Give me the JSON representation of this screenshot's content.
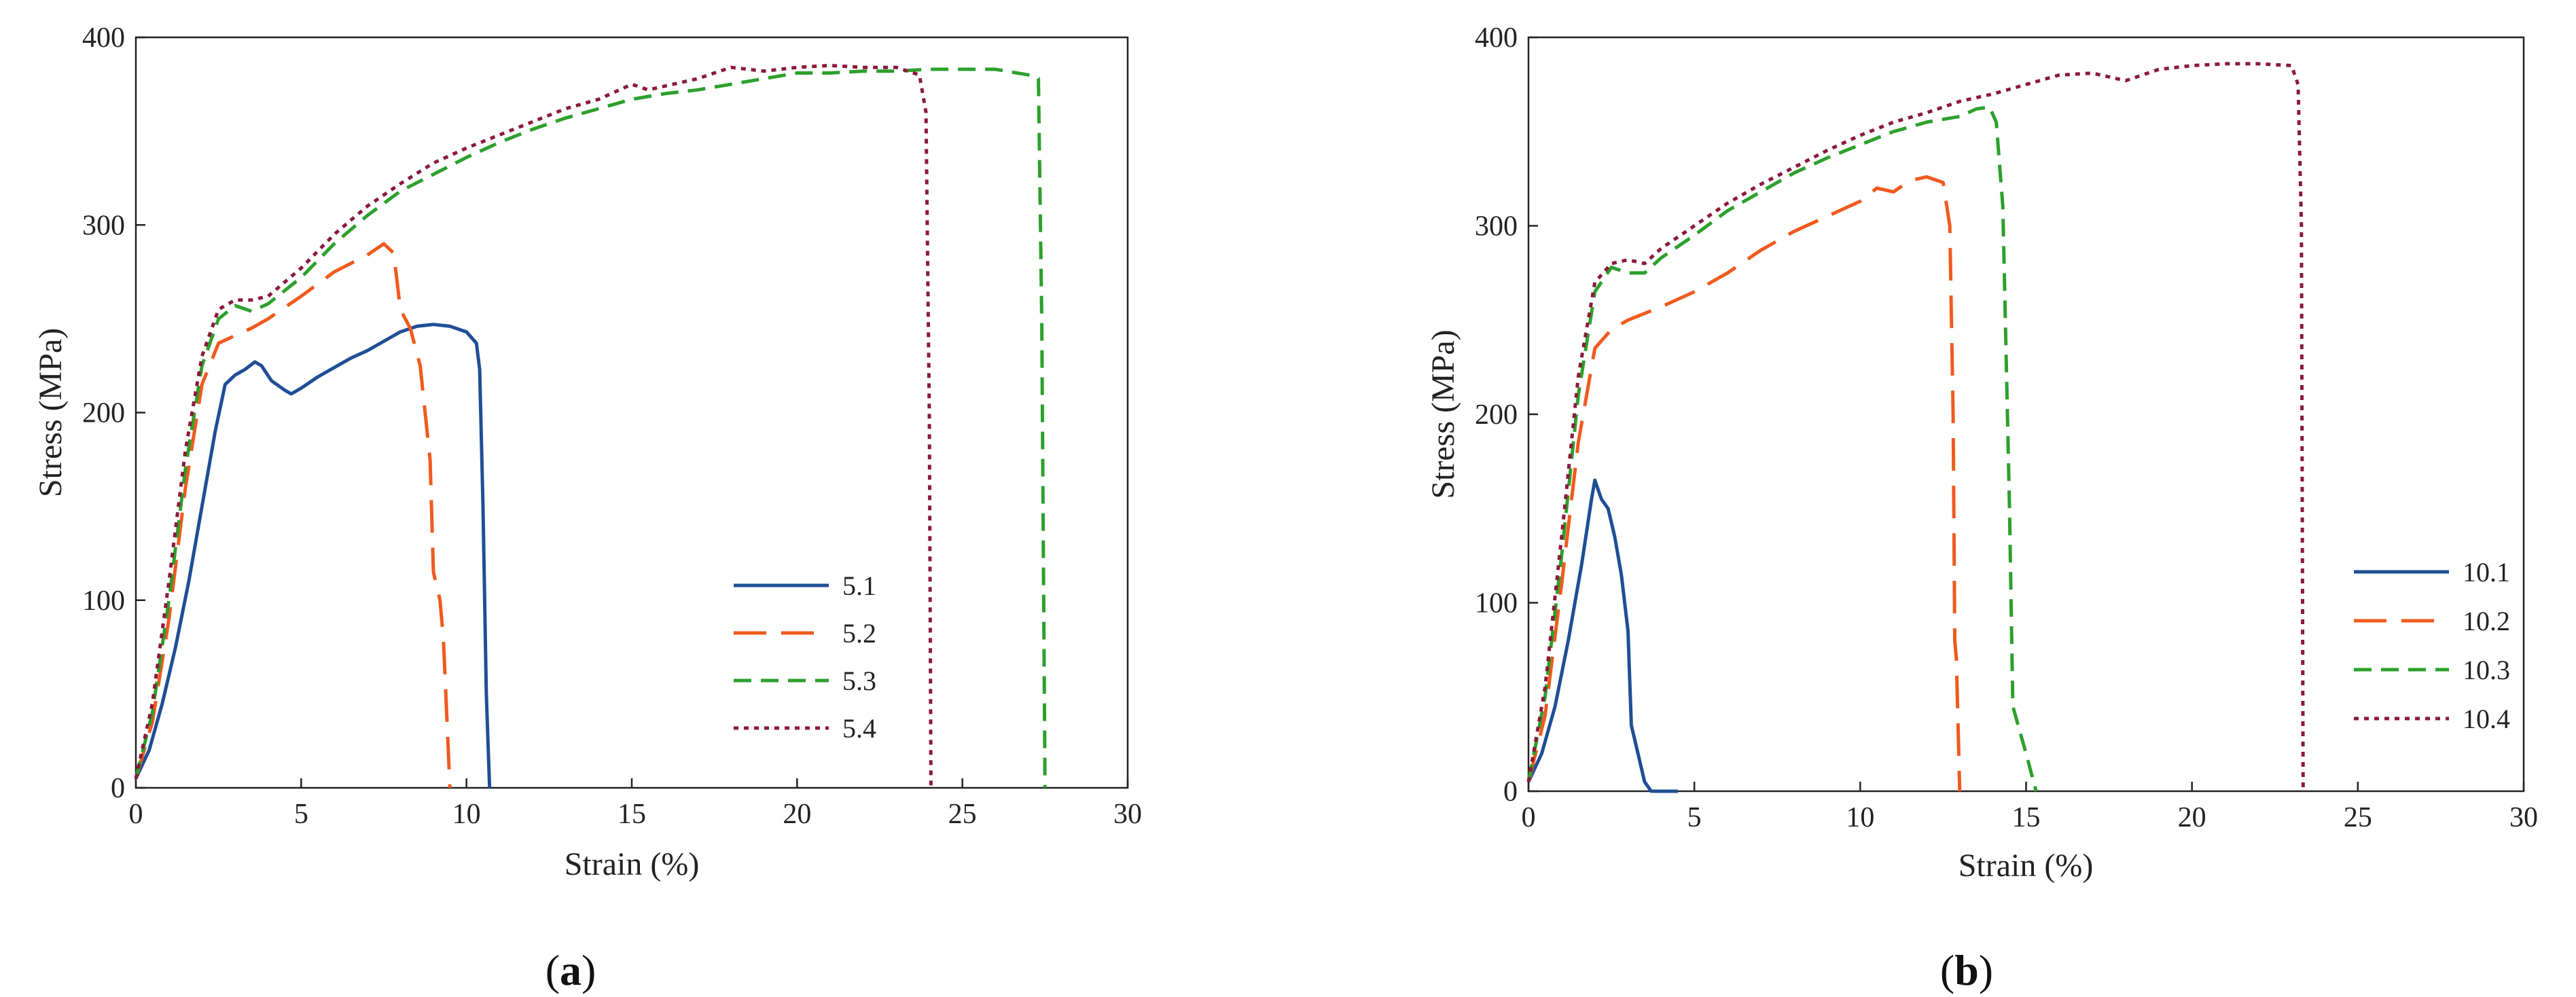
{
  "chart_data": [
    {
      "type": "line",
      "panel": "a",
      "caption_open": "(",
      "caption_letter": "a",
      "caption_close": ")",
      "title": "",
      "xlabel": "Strain (%)",
      "ylabel": "Stress (MPa)",
      "xlim": [
        0,
        30
      ],
      "ylim": [
        0,
        400
      ],
      "xticks": [
        0,
        5,
        10,
        15,
        20,
        25,
        30
      ],
      "yticks": [
        0,
        100,
        200,
        300,
        400
      ],
      "grid": false,
      "legend_position": "lower-right",
      "series": [
        {
          "name": "5.1",
          "color": "#1f4e96",
          "dash": "solid",
          "points": [
            [
              0,
              5
            ],
            [
              0.4,
              20
            ],
            [
              0.8,
              45
            ],
            [
              1.2,
              75
            ],
            [
              1.6,
              110
            ],
            [
              2.0,
              150
            ],
            [
              2.4,
              190
            ],
            [
              2.7,
              215
            ],
            [
              3.0,
              220
            ],
            [
              3.3,
              223
            ],
            [
              3.6,
              227
            ],
            [
              3.8,
              225
            ],
            [
              4.1,
              217
            ],
            [
              4.5,
              212
            ],
            [
              4.7,
              210
            ],
            [
              5.0,
              213
            ],
            [
              5.5,
              219
            ],
            [
              6.0,
              224
            ],
            [
              6.5,
              229
            ],
            [
              7.0,
              233
            ],
            [
              7.5,
              238
            ],
            [
              8.0,
              243
            ],
            [
              8.5,
              246
            ],
            [
              9.0,
              247
            ],
            [
              9.5,
              246
            ],
            [
              10.0,
              243
            ],
            [
              10.3,
              237
            ],
            [
              10.4,
              223
            ],
            [
              10.5,
              150
            ],
            [
              10.6,
              50
            ],
            [
              10.7,
              0
            ]
          ]
        },
        {
          "name": "5.2",
          "color": "#f05a1e",
          "dash": "long",
          "points": [
            [
              0,
              5
            ],
            [
              0.5,
              35
            ],
            [
              1.0,
              90
            ],
            [
              1.5,
              160
            ],
            [
              2.0,
              215
            ],
            [
              2.5,
              237
            ],
            [
              3.0,
              241
            ],
            [
              3.5,
              245
            ],
            [
              4.0,
              250
            ],
            [
              5.0,
              262
            ],
            [
              6.0,
              275
            ],
            [
              7.0,
              284
            ],
            [
              7.5,
              290
            ],
            [
              7.8,
              285
            ],
            [
              8.0,
              255
            ],
            [
              8.3,
              245
            ],
            [
              8.6,
              225
            ],
            [
              8.9,
              175
            ],
            [
              9.0,
              115
            ],
            [
              9.2,
              100
            ],
            [
              9.3,
              80
            ],
            [
              9.4,
              40
            ],
            [
              9.5,
              0
            ]
          ]
        },
        {
          "name": "5.3",
          "color": "#2ca02c",
          "dash": "medium",
          "points": [
            [
              0,
              5
            ],
            [
              0.5,
              40
            ],
            [
              1.0,
              100
            ],
            [
              1.5,
              170
            ],
            [
              2.0,
              225
            ],
            [
              2.5,
              250
            ],
            [
              3.0,
              257
            ],
            [
              3.5,
              254
            ],
            [
              4.0,
              258
            ],
            [
              5.0,
              272
            ],
            [
              6.0,
              290
            ],
            [
              7.0,
              305
            ],
            [
              8.0,
              318
            ],
            [
              9.0,
              327
            ],
            [
              10.0,
              336
            ],
            [
              11.0,
              344
            ],
            [
              12.0,
              351
            ],
            [
              13.0,
              357
            ],
            [
              14.0,
              362
            ],
            [
              15.0,
              367
            ],
            [
              16.0,
              370
            ],
            [
              17.0,
              372
            ],
            [
              18.0,
              375
            ],
            [
              19.0,
              378
            ],
            [
              20.0,
              381
            ],
            [
              21.0,
              381
            ],
            [
              22.0,
              382
            ],
            [
              23.0,
              382
            ],
            [
              24.0,
              383
            ],
            [
              25.0,
              383
            ],
            [
              26.0,
              383
            ],
            [
              27.0,
              380
            ],
            [
              27.3,
              378
            ],
            [
              27.4,
              250
            ],
            [
              27.5,
              0
            ]
          ]
        },
        {
          "name": "5.4",
          "color": "#8b1a3a",
          "dash": "dotted",
          "points": [
            [
              0,
              5
            ],
            [
              0.5,
              45
            ],
            [
              1.0,
              110
            ],
            [
              1.5,
              180
            ],
            [
              2.0,
              230
            ],
            [
              2.5,
              255
            ],
            [
              3.0,
              260
            ],
            [
              3.5,
              260
            ],
            [
              4.0,
              262
            ],
            [
              5.0,
              277
            ],
            [
              6.0,
              295
            ],
            [
              7.0,
              310
            ],
            [
              8.0,
              322
            ],
            [
              9.0,
              333
            ],
            [
              10.0,
              341
            ],
            [
              11.0,
              348
            ],
            [
              12.0,
              355
            ],
            [
              13.0,
              362
            ],
            [
              14.0,
              367
            ],
            [
              15.0,
              375
            ],
            [
              15.5,
              372
            ],
            [
              16.0,
              374
            ],
            [
              17.0,
              378
            ],
            [
              18.0,
              384
            ],
            [
              19.0,
              382
            ],
            [
              20.0,
              384
            ],
            [
              21.0,
              385
            ],
            [
              22.0,
              384
            ],
            [
              23.0,
              384
            ],
            [
              23.7,
              380
            ],
            [
              23.9,
              360
            ],
            [
              24.0,
              200
            ],
            [
              24.05,
              0
            ]
          ]
        }
      ]
    },
    {
      "type": "line",
      "panel": "b",
      "caption_open": "(",
      "caption_letter": "b",
      "caption_close": ")",
      "title": "",
      "xlabel": "Strain (%)",
      "ylabel": "Stress (MPa)",
      "xlim": [
        0,
        30
      ],
      "ylim": [
        0,
        400
      ],
      "xticks": [
        0,
        5,
        10,
        15,
        20,
        25,
        30
      ],
      "yticks": [
        0,
        100,
        200,
        300,
        400
      ],
      "grid": false,
      "legend_position": "lower-right",
      "series": [
        {
          "name": "10.1",
          "color": "#1f4e96",
          "dash": "solid",
          "points": [
            [
              0,
              5
            ],
            [
              0.4,
              20
            ],
            [
              0.8,
              45
            ],
            [
              1.2,
              80
            ],
            [
              1.6,
              120
            ],
            [
              1.9,
              155
            ],
            [
              2.0,
              165
            ],
            [
              2.2,
              155
            ],
            [
              2.4,
              150
            ],
            [
              2.6,
              135
            ],
            [
              2.8,
              115
            ],
            [
              3.0,
              85
            ],
            [
              3.1,
              35
            ],
            [
              3.3,
              20
            ],
            [
              3.5,
              5
            ],
            [
              3.7,
              0
            ],
            [
              4.0,
              0
            ],
            [
              4.5,
              0
            ]
          ]
        },
        {
          "name": "10.2",
          "color": "#f05a1e",
          "dash": "long",
          "points": [
            [
              0,
              5
            ],
            [
              0.5,
              40
            ],
            [
              1.0,
              110
            ],
            [
              1.5,
              185
            ],
            [
              2.0,
              235
            ],
            [
              2.5,
              245
            ],
            [
              3.0,
              250
            ],
            [
              4.0,
              257
            ],
            [
              5.0,
              265
            ],
            [
              6.0,
              275
            ],
            [
              7.0,
              287
            ],
            [
              8.0,
              297
            ],
            [
              9.0,
              305
            ],
            [
              10.0,
              313
            ],
            [
              10.5,
              320
            ],
            [
              11.0,
              318
            ],
            [
              11.5,
              324
            ],
            [
              12.0,
              326
            ],
            [
              12.5,
              323
            ],
            [
              12.7,
              300
            ],
            [
              12.8,
              200
            ],
            [
              12.85,
              80
            ],
            [
              12.9,
              70
            ],
            [
              13.0,
              0
            ]
          ]
        },
        {
          "name": "10.3",
          "color": "#2ca02c",
          "dash": "medium",
          "points": [
            [
              0,
              5
            ],
            [
              0.5,
              50
            ],
            [
              1.0,
              125
            ],
            [
              1.5,
              210
            ],
            [
              2.0,
              265
            ],
            [
              2.5,
              278
            ],
            [
              3.0,
              275
            ],
            [
              3.5,
              275
            ],
            [
              4.0,
              283
            ],
            [
              5.0,
              295
            ],
            [
              6.0,
              308
            ],
            [
              7.0,
              318
            ],
            [
              8.0,
              328
            ],
            [
              9.0,
              336
            ],
            [
              10.0,
              343
            ],
            [
              11.0,
              350
            ],
            [
              12.0,
              355
            ],
            [
              13.0,
              358
            ],
            [
              13.5,
              362
            ],
            [
              13.9,
              363
            ],
            [
              14.1,
              355
            ],
            [
              14.3,
              310
            ],
            [
              14.5,
              150
            ],
            [
              14.6,
              45
            ],
            [
              15.0,
              20
            ],
            [
              15.3,
              0
            ]
          ]
        },
        {
          "name": "10.4",
          "color": "#8b1a3a",
          "dash": "dotted",
          "points": [
            [
              0,
              5
            ],
            [
              0.5,
              55
            ],
            [
              1.0,
              135
            ],
            [
              1.5,
              220
            ],
            [
              2.0,
              270
            ],
            [
              2.5,
              280
            ],
            [
              3.0,
              282
            ],
            [
              3.5,
              280
            ],
            [
              4.0,
              288
            ],
            [
              5.0,
              300
            ],
            [
              6.0,
              312
            ],
            [
              7.0,
              322
            ],
            [
              8.0,
              331
            ],
            [
              9.0,
              340
            ],
            [
              10.0,
              348
            ],
            [
              11.0,
              355
            ],
            [
              12.0,
              360
            ],
            [
              13.0,
              366
            ],
            [
              14.0,
              370
            ],
            [
              15.0,
              375
            ],
            [
              16.0,
              380
            ],
            [
              17.0,
              381
            ],
            [
              18.0,
              377
            ],
            [
              19.0,
              383
            ],
            [
              20.0,
              385
            ],
            [
              21.0,
              386
            ],
            [
              22.0,
              386
            ],
            [
              23.0,
              385
            ],
            [
              23.2,
              375
            ],
            [
              23.3,
              300
            ],
            [
              23.35,
              0
            ]
          ]
        }
      ]
    }
  ]
}
